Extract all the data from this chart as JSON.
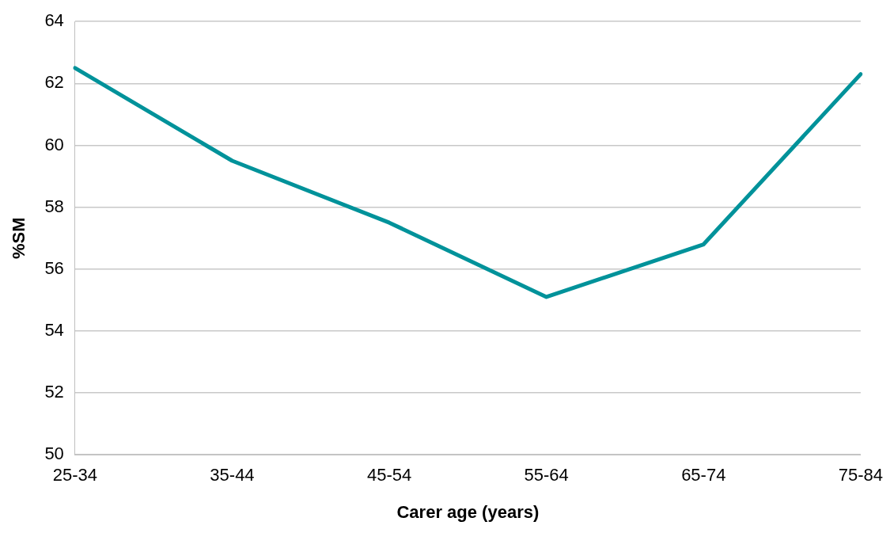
{
  "chart_data": {
    "type": "line",
    "xlabel": "Carer age (years)",
    "ylabel": "%SM",
    "categories": [
      "25-34",
      "35-44",
      "45-54",
      "55-64",
      "65-74",
      "75-84"
    ],
    "series": [
      {
        "color": "#00929a",
        "values": [
          62.5,
          59.5,
          57.5,
          55.1,
          56.8,
          62.3
        ]
      }
    ],
    "ylim": [
      50,
      64
    ],
    "yticks": [
      50,
      52,
      54,
      56,
      58,
      60,
      62,
      64
    ],
    "grid": "y",
    "legend": false,
    "marker": "none",
    "line_style": "solid"
  }
}
